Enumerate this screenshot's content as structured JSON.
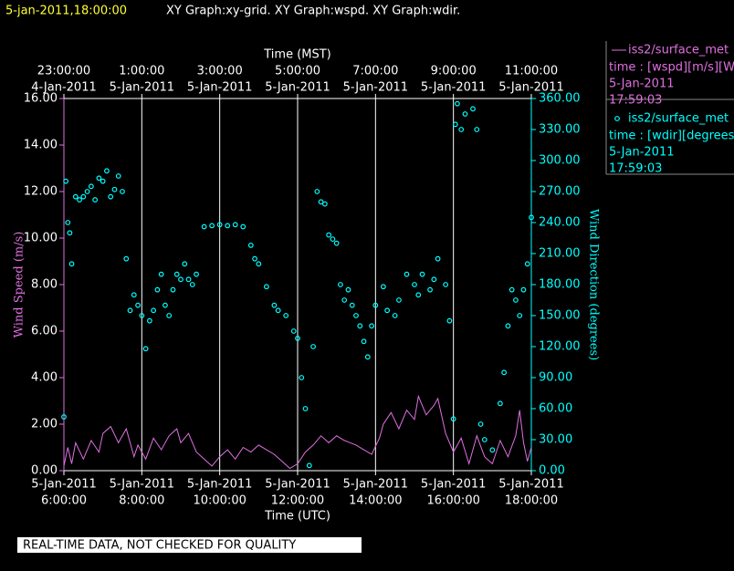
{
  "chart_data": {
    "type": "line",
    "title": "5-jan-2011,18:00:00",
    "subtitle": "XY Graph:xy-grid.  XY Graph:wspd.  XY Graph:wdir.",
    "xlabel": "Time (UTC)",
    "x2label": "Time (MST)",
    "ylabel": "Wind Speed (m/s)",
    "y2label": "Wind Direction (degrees)",
    "footer": "REAL-TIME DATA, NOT CHECKED FOR QUALITY",
    "grid": true,
    "xlim": [
      6,
      18
    ],
    "xticks": [
      {
        "value": 6,
        "date": "5-Jan-2011",
        "label": "6:00:00"
      },
      {
        "value": 8,
        "date": "5-Jan-2011",
        "label": "8:00:00"
      },
      {
        "value": 10,
        "date": "5-Jan-2011",
        "label": "10:00:00"
      },
      {
        "value": 12,
        "date": "5-Jan-2011",
        "label": "12:00:00"
      },
      {
        "value": 14,
        "date": "5-Jan-2011",
        "label": "14:00:00"
      },
      {
        "value": 16,
        "date": "5-Jan-2011",
        "label": "16:00:00"
      },
      {
        "value": 18,
        "date": "5-Jan-2011",
        "label": "18:00:00"
      }
    ],
    "x2ticks": [
      {
        "value": 6,
        "date": "4-Jan-2011",
        "label": "23:00:00"
      },
      {
        "value": 8,
        "date": "5-Jan-2011",
        "label": "1:00:00"
      },
      {
        "value": 10,
        "date": "5-Jan-2011",
        "label": "3:00:00"
      },
      {
        "value": 12,
        "date": "5-Jan-2011",
        "label": "5:00:00"
      },
      {
        "value": 14,
        "date": "5-Jan-2011",
        "label": "7:00:00"
      },
      {
        "value": 16,
        "date": "5-Jan-2011",
        "label": "9:00:00"
      },
      {
        "value": 18,
        "date": "5-Jan-2011",
        "label": "11:00:00"
      }
    ],
    "ylim": [
      0,
      16
    ],
    "yticks": [
      {
        "value": 0,
        "label": "0.00"
      },
      {
        "value": 2,
        "label": "2.00"
      },
      {
        "value": 4,
        "label": "4.00"
      },
      {
        "value": 6,
        "label": "6.00"
      },
      {
        "value": 8,
        "label": "8.00"
      },
      {
        "value": 10,
        "label": "10.00"
      },
      {
        "value": 12,
        "label": "12.00"
      },
      {
        "value": 14,
        "label": "14.00"
      },
      {
        "value": 16,
        "label": "16.00"
      }
    ],
    "y2lim": [
      0,
      360
    ],
    "y2ticks": [
      {
        "value": 0,
        "label": "0.00"
      },
      {
        "value": 30,
        "label": "30.00"
      },
      {
        "value": 60,
        "label": "60.00"
      },
      {
        "value": 90,
        "label": "90.00"
      },
      {
        "value": 120,
        "label": "120.00"
      },
      {
        "value": 150,
        "label": "150.00"
      },
      {
        "value": 180,
        "label": "180.00"
      },
      {
        "value": 210,
        "label": "210.00"
      },
      {
        "value": 240,
        "label": "240.00"
      },
      {
        "value": 270,
        "label": "270.00"
      },
      {
        "value": 300,
        "label": "300.00"
      },
      {
        "value": 330,
        "label": "330.00"
      },
      {
        "value": 360,
        "label": "360.00"
      }
    ],
    "series": [
      {
        "name": "iss2/surface_met",
        "type": "line",
        "color": "#e070e0",
        "axis": "y",
        "legend": [
          "time : [wspd][m/s][Wind",
          "5-Jan-2011",
          "17:59:03"
        ],
        "x": [
          6.0,
          6.1,
          6.2,
          6.3,
          6.5,
          6.7,
          6.9,
          7.0,
          7.2,
          7.4,
          7.6,
          7.8,
          7.9,
          8.1,
          8.3,
          8.5,
          8.7,
          8.9,
          9.0,
          9.2,
          9.4,
          9.6,
          9.8,
          10.0,
          10.2,
          10.4,
          10.6,
          10.8,
          11.0,
          11.2,
          11.4,
          11.6,
          11.8,
          12.0,
          12.2,
          12.4,
          12.6,
          12.8,
          13.0,
          13.2,
          13.5,
          13.7,
          13.9,
          14.1,
          14.2,
          14.4,
          14.6,
          14.8,
          15.0,
          15.1,
          15.3,
          15.5,
          15.6,
          15.8,
          16.0,
          16.2,
          16.4,
          16.6,
          16.8,
          17.0,
          17.2,
          17.4,
          17.6,
          17.7,
          17.8,
          17.9,
          18.0
        ],
        "values": [
          0.2,
          1.0,
          0.3,
          1.2,
          0.5,
          1.3,
          0.8,
          1.6,
          1.9,
          1.2,
          1.8,
          0.6,
          1.1,
          0.5,
          1.4,
          0.9,
          1.5,
          1.8,
          1.2,
          1.6,
          0.8,
          0.5,
          0.2,
          0.6,
          0.9,
          0.5,
          1.0,
          0.8,
          1.1,
          0.9,
          0.7,
          0.4,
          0.1,
          0.3,
          0.8,
          1.1,
          1.5,
          1.2,
          1.5,
          1.3,
          1.1,
          0.9,
          0.7,
          1.4,
          2.0,
          2.5,
          1.8,
          2.6,
          2.2,
          3.2,
          2.4,
          2.8,
          3.1,
          1.6,
          0.8,
          1.4,
          0.3,
          1.5,
          0.6,
          0.3,
          1.3,
          0.6,
          1.5,
          2.6,
          1.2,
          0.4,
          1.0
        ]
      },
      {
        "name": "iss2/surface_met",
        "type": "scatter",
        "color": "#00ffff",
        "axis": "y2",
        "legend": [
          "time : [wdir][degrees][V",
          "5-Jan-2011",
          "17:59:03"
        ],
        "x": [
          6.0,
          6.05,
          6.1,
          6.15,
          6.2,
          6.3,
          6.4,
          6.5,
          6.6,
          6.7,
          6.8,
          6.9,
          7.0,
          7.1,
          7.2,
          7.3,
          7.4,
          7.5,
          7.6,
          7.7,
          7.8,
          7.9,
          8.0,
          8.1,
          8.2,
          8.3,
          8.4,
          8.5,
          8.6,
          8.7,
          8.8,
          8.9,
          9.0,
          9.1,
          9.2,
          9.3,
          9.4,
          9.6,
          9.8,
          10.0,
          10.2,
          10.4,
          10.6,
          10.8,
          10.9,
          11.0,
          11.2,
          11.4,
          11.5,
          11.7,
          11.9,
          12.0,
          12.1,
          12.2,
          12.3,
          12.4,
          12.5,
          12.6,
          12.7,
          12.8,
          12.9,
          13.0,
          13.1,
          13.2,
          13.3,
          13.4,
          13.5,
          13.6,
          13.7,
          13.8,
          13.9,
          14.0,
          14.2,
          14.3,
          14.5,
          14.6,
          14.8,
          15.0,
          15.1,
          15.2,
          15.4,
          15.5,
          15.6,
          15.8,
          15.9,
          16.0,
          16.05,
          16.1,
          16.2,
          16.3,
          16.5,
          16.6,
          16.7,
          16.8,
          17.0,
          17.2,
          17.3,
          17.4,
          17.5,
          17.6,
          17.7,
          17.8,
          17.9,
          18.0
        ],
        "values": [
          52,
          280,
          240,
          230,
          200,
          265,
          262,
          265,
          270,
          275,
          262,
          283,
          280,
          290,
          265,
          272,
          285,
          270,
          205,
          155,
          170,
          160,
          150,
          118,
          145,
          155,
          175,
          190,
          160,
          150,
          175,
          190,
          185,
          200,
          185,
          180,
          190,
          236,
          237,
          238,
          237,
          238,
          236,
          218,
          205,
          200,
          178,
          160,
          155,
          150,
          135,
          128,
          90,
          60,
          5,
          120,
          270,
          260,
          258,
          228,
          224,
          220,
          180,
          165,
          175,
          160,
          150,
          140,
          125,
          110,
          140,
          160,
          178,
          155,
          150,
          165,
          190,
          180,
          170,
          190,
          175,
          185,
          205,
          180,
          145,
          50,
          335,
          355,
          330,
          345,
          350,
          330,
          45,
          30,
          20,
          65,
          95,
          140,
          175,
          165,
          150,
          175,
          200,
          245
        ]
      }
    ]
  }
}
